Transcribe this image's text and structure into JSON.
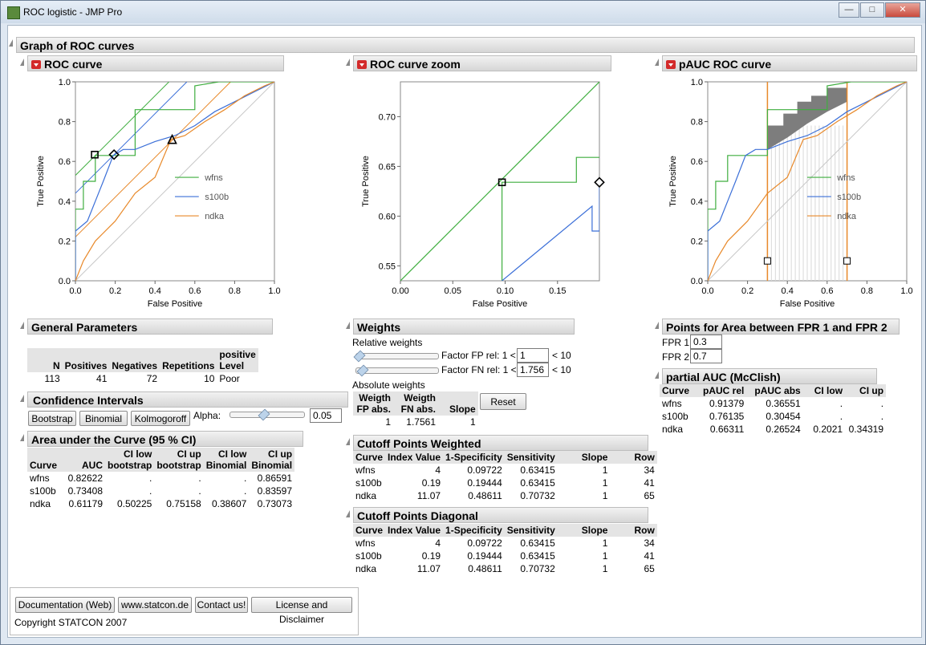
{
  "window": {
    "title": "ROC logistic - JMP Pro"
  },
  "main": {
    "title": "Graph of ROC curves"
  },
  "roc": {
    "title": "ROC curve",
    "xlabel": "False Positive",
    "ylabel": "True Positive"
  },
  "zoom": {
    "title": "ROC curve zoom",
    "xlabel": "False Positive",
    "ylabel": "True Positive"
  },
  "pauc_plot": {
    "title": "pAUC ROC curve",
    "xlabel": "False Positive",
    "ylabel": "True Positive"
  },
  "legend": [
    "wfns",
    "s100b",
    "ndka"
  ],
  "colors": {
    "wfns": "#3fae3f",
    "s100b": "#3b6fd8",
    "ndka": "#e8892a",
    "diag": "#bdbdbd"
  },
  "chart_data": [
    {
      "type": "line",
      "title": "ROC curve",
      "xlabel": "False Positive",
      "ylabel": "True Positive",
      "xlim": [
        0,
        1
      ],
      "ylim": [
        0,
        1
      ],
      "xticks": [
        "0.0",
        "0.2",
        "0.4",
        "0.6",
        "0.8",
        "1.0"
      ],
      "yticks": [
        "0.0",
        "0.2",
        "0.4",
        "0.6",
        "0.8",
        "1.0"
      ],
      "series": [
        {
          "name": "wfns",
          "x": [
            0,
            0,
            0.04,
            0.04,
            0.1,
            0.1,
            0.3,
            0.3,
            0.6,
            0.6,
            0.72,
            1
          ],
          "y": [
            0,
            0.36,
            0.36,
            0.5,
            0.5,
            0.63,
            0.63,
            0.86,
            0.86,
            0.98,
            1,
            1
          ]
        },
        {
          "name": "s100b",
          "x": [
            0,
            0,
            0.06,
            0.1,
            0.14,
            0.19,
            0.24,
            0.3,
            0.4,
            0.5,
            0.6,
            0.7,
            0.8,
            0.9,
            1
          ],
          "y": [
            0,
            0.25,
            0.3,
            0.4,
            0.5,
            0.63,
            0.66,
            0.66,
            0.7,
            0.73,
            0.78,
            0.85,
            0.9,
            0.95,
            1
          ]
        },
        {
          "name": "ndka",
          "x": [
            0,
            0.04,
            0.1,
            0.2,
            0.3,
            0.4,
            0.48,
            0.55,
            0.65,
            0.75,
            0.85,
            0.95,
            1
          ],
          "y": [
            0,
            0.1,
            0.2,
            0.3,
            0.44,
            0.52,
            0.71,
            0.73,
            0.8,
            0.86,
            0.93,
            0.98,
            1
          ]
        }
      ],
      "points": [
        {
          "series": "wfns",
          "x": 0.097,
          "y": 0.634
        },
        {
          "series": "s100b",
          "x": 0.194,
          "y": 0.634
        },
        {
          "series": "ndka",
          "x": 0.486,
          "y": 0.707
        }
      ]
    },
    {
      "type": "line",
      "title": "ROC curve zoom",
      "xlabel": "False Positive",
      "ylabel": "True Positive",
      "xlim": [
        0,
        0.19
      ],
      "ylim": [
        0.535,
        0.735
      ],
      "xticks": [
        "0.00",
        "0.05",
        "0.10",
        "0.15"
      ],
      "yticks": [
        "0.55",
        "0.60",
        "0.65",
        "0.70"
      ],
      "series": [
        {
          "name": "wfns",
          "x": [
            0.097,
            0.097,
            0.168,
            0.168,
            0.19
          ],
          "y": [
            0.535,
            0.634,
            0.634,
            0.659,
            0.659
          ]
        },
        {
          "name": "s100b",
          "x": [
            0.097,
            0.183,
            0.183,
            0.19,
            0.19
          ],
          "y": [
            0.535,
            0.61,
            0.585,
            0.585,
            0.634
          ]
        },
        {
          "name": "diagonal",
          "x": [
            0,
            0.19
          ],
          "y": [
            0.535,
            0.735
          ]
        }
      ]
    },
    {
      "type": "area",
      "title": "pAUC ROC curve",
      "xlabel": "False Positive",
      "ylabel": "True Positive",
      "xlim": [
        0,
        1
      ],
      "ylim": [
        0,
        1
      ],
      "xticks": [
        "0.0",
        "0.2",
        "0.4",
        "0.6",
        "0.8",
        "1.0"
      ],
      "yticks": [
        "0.0",
        "0.2",
        "0.4",
        "0.6",
        "0.8",
        "1.0"
      ],
      "fpr_bounds": [
        0.3,
        0.7
      ]
    }
  ],
  "general": {
    "title": "General Parameters",
    "headers": [
      "N",
      "Positives",
      "Negatives",
      "Repetitions",
      "positive Level"
    ],
    "row": [
      "113",
      "41",
      "72",
      "10",
      "Poor"
    ]
  },
  "ci": {
    "title": "Confidence Intervals",
    "buttons": [
      "Bootstrap",
      "Binomial",
      "Kolmogoroff"
    ],
    "alpha_label": "Alpha:",
    "alpha": "0.05"
  },
  "auc": {
    "title": "Area under the Curve (95 % CI)",
    "headers": [
      "Curve",
      "AUC",
      "CI low bootstrap",
      "CI up bootstrap",
      "CI low Binomial",
      "CI up Binomial"
    ],
    "rows": [
      [
        "wfns",
        "0.82622",
        ".",
        ".",
        ".",
        "0.86591"
      ],
      [
        "s100b",
        "0.73408",
        ".",
        ".",
        ".",
        "0.83597"
      ],
      [
        "ndka",
        "0.61179",
        "0.50225",
        "0.75158",
        "0.38607",
        "0.73073"
      ]
    ]
  },
  "weights": {
    "title": "Weights",
    "relative": "Relative weights",
    "fp_label": "Factor FP rel: 1 <",
    "fp_value": "1",
    "fp_max": "< 10",
    "fn_label": "Factor FN rel: 1 <",
    "fn_value": "1.756",
    "fn_max": "< 10",
    "absolute": "Absolute weights",
    "headers": [
      "Weigth FP abs.",
      "Weigth FN abs.",
      "Slope"
    ],
    "row": [
      "1",
      "1.7561",
      "1"
    ],
    "reset": "Reset"
  },
  "cutoff_weighted": {
    "title": "Cutoff Points Weighted",
    "headers": [
      "Curve",
      "Index Value",
      "1-Specificity",
      "Sensitivity",
      "Slope",
      "Row"
    ],
    "rows": [
      [
        "wfns",
        "4",
        "0.09722",
        "0.63415",
        "1",
        "34"
      ],
      [
        "s100b",
        "0.19",
        "0.19444",
        "0.63415",
        "1",
        "41"
      ],
      [
        "ndka",
        "11.07",
        "0.48611",
        "0.70732",
        "1",
        "65"
      ]
    ]
  },
  "cutoff_diagonal": {
    "title": "Cutoff Points Diagonal",
    "headers": [
      "Curve",
      "Index Value",
      "1-Specificity",
      "Sensitivity",
      "Slope",
      "Row"
    ],
    "rows": [
      [
        "wfns",
        "4",
        "0.09722",
        "0.63415",
        "1",
        "34"
      ],
      [
        "s100b",
        "0.19",
        "0.19444",
        "0.63415",
        "1",
        "41"
      ],
      [
        "ndka",
        "11.07",
        "0.48611",
        "0.70732",
        "1",
        "65"
      ]
    ]
  },
  "area_points": {
    "title": "Points for Area between FPR 1 and FPR 2",
    "fpr1_label": "FPR 1",
    "fpr1": "0.3",
    "fpr2_label": "FPR 2",
    "fpr2": "0.7"
  },
  "pauc": {
    "title": "partial AUC (McClish)",
    "headers": [
      "Curve",
      "pAUC rel",
      "pAUC abs",
      "CI low",
      "CI up"
    ],
    "rows": [
      [
        "wfns",
        "0.91379",
        "0.36551",
        ".",
        "."
      ],
      [
        "s100b",
        "0.76135",
        "0.30454",
        ".",
        "."
      ],
      [
        "ndka",
        "0.66311",
        "0.26524",
        "0.2021",
        "0.34319"
      ]
    ]
  },
  "footer": {
    "buttons": [
      "Documentation (Web)",
      "www.statcon.de",
      "Contact us!",
      "License and Disclaimer"
    ],
    "copyright": "Copyright STATCON 2007"
  }
}
